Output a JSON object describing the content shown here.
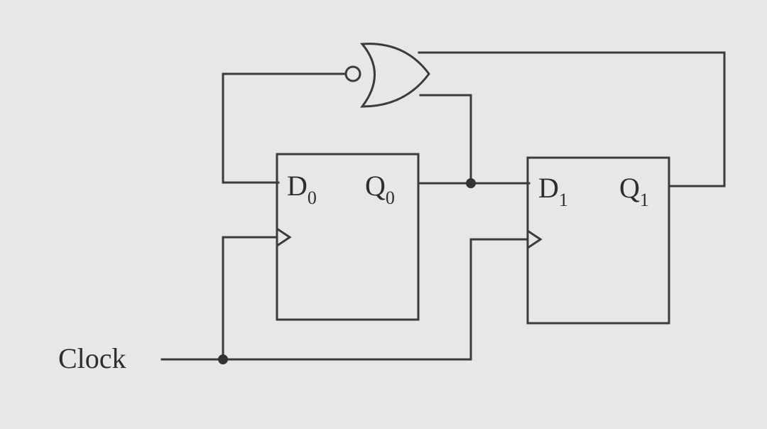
{
  "clock": {
    "label": "Clock"
  },
  "flipflops": [
    {
      "d_main": "D",
      "d_sub": "0",
      "q_main": "Q",
      "q_sub": "0"
    },
    {
      "d_main": "D",
      "d_sub": "1",
      "q_main": "Q",
      "q_sub": "1"
    }
  ],
  "gate": {
    "type": "NOR"
  }
}
